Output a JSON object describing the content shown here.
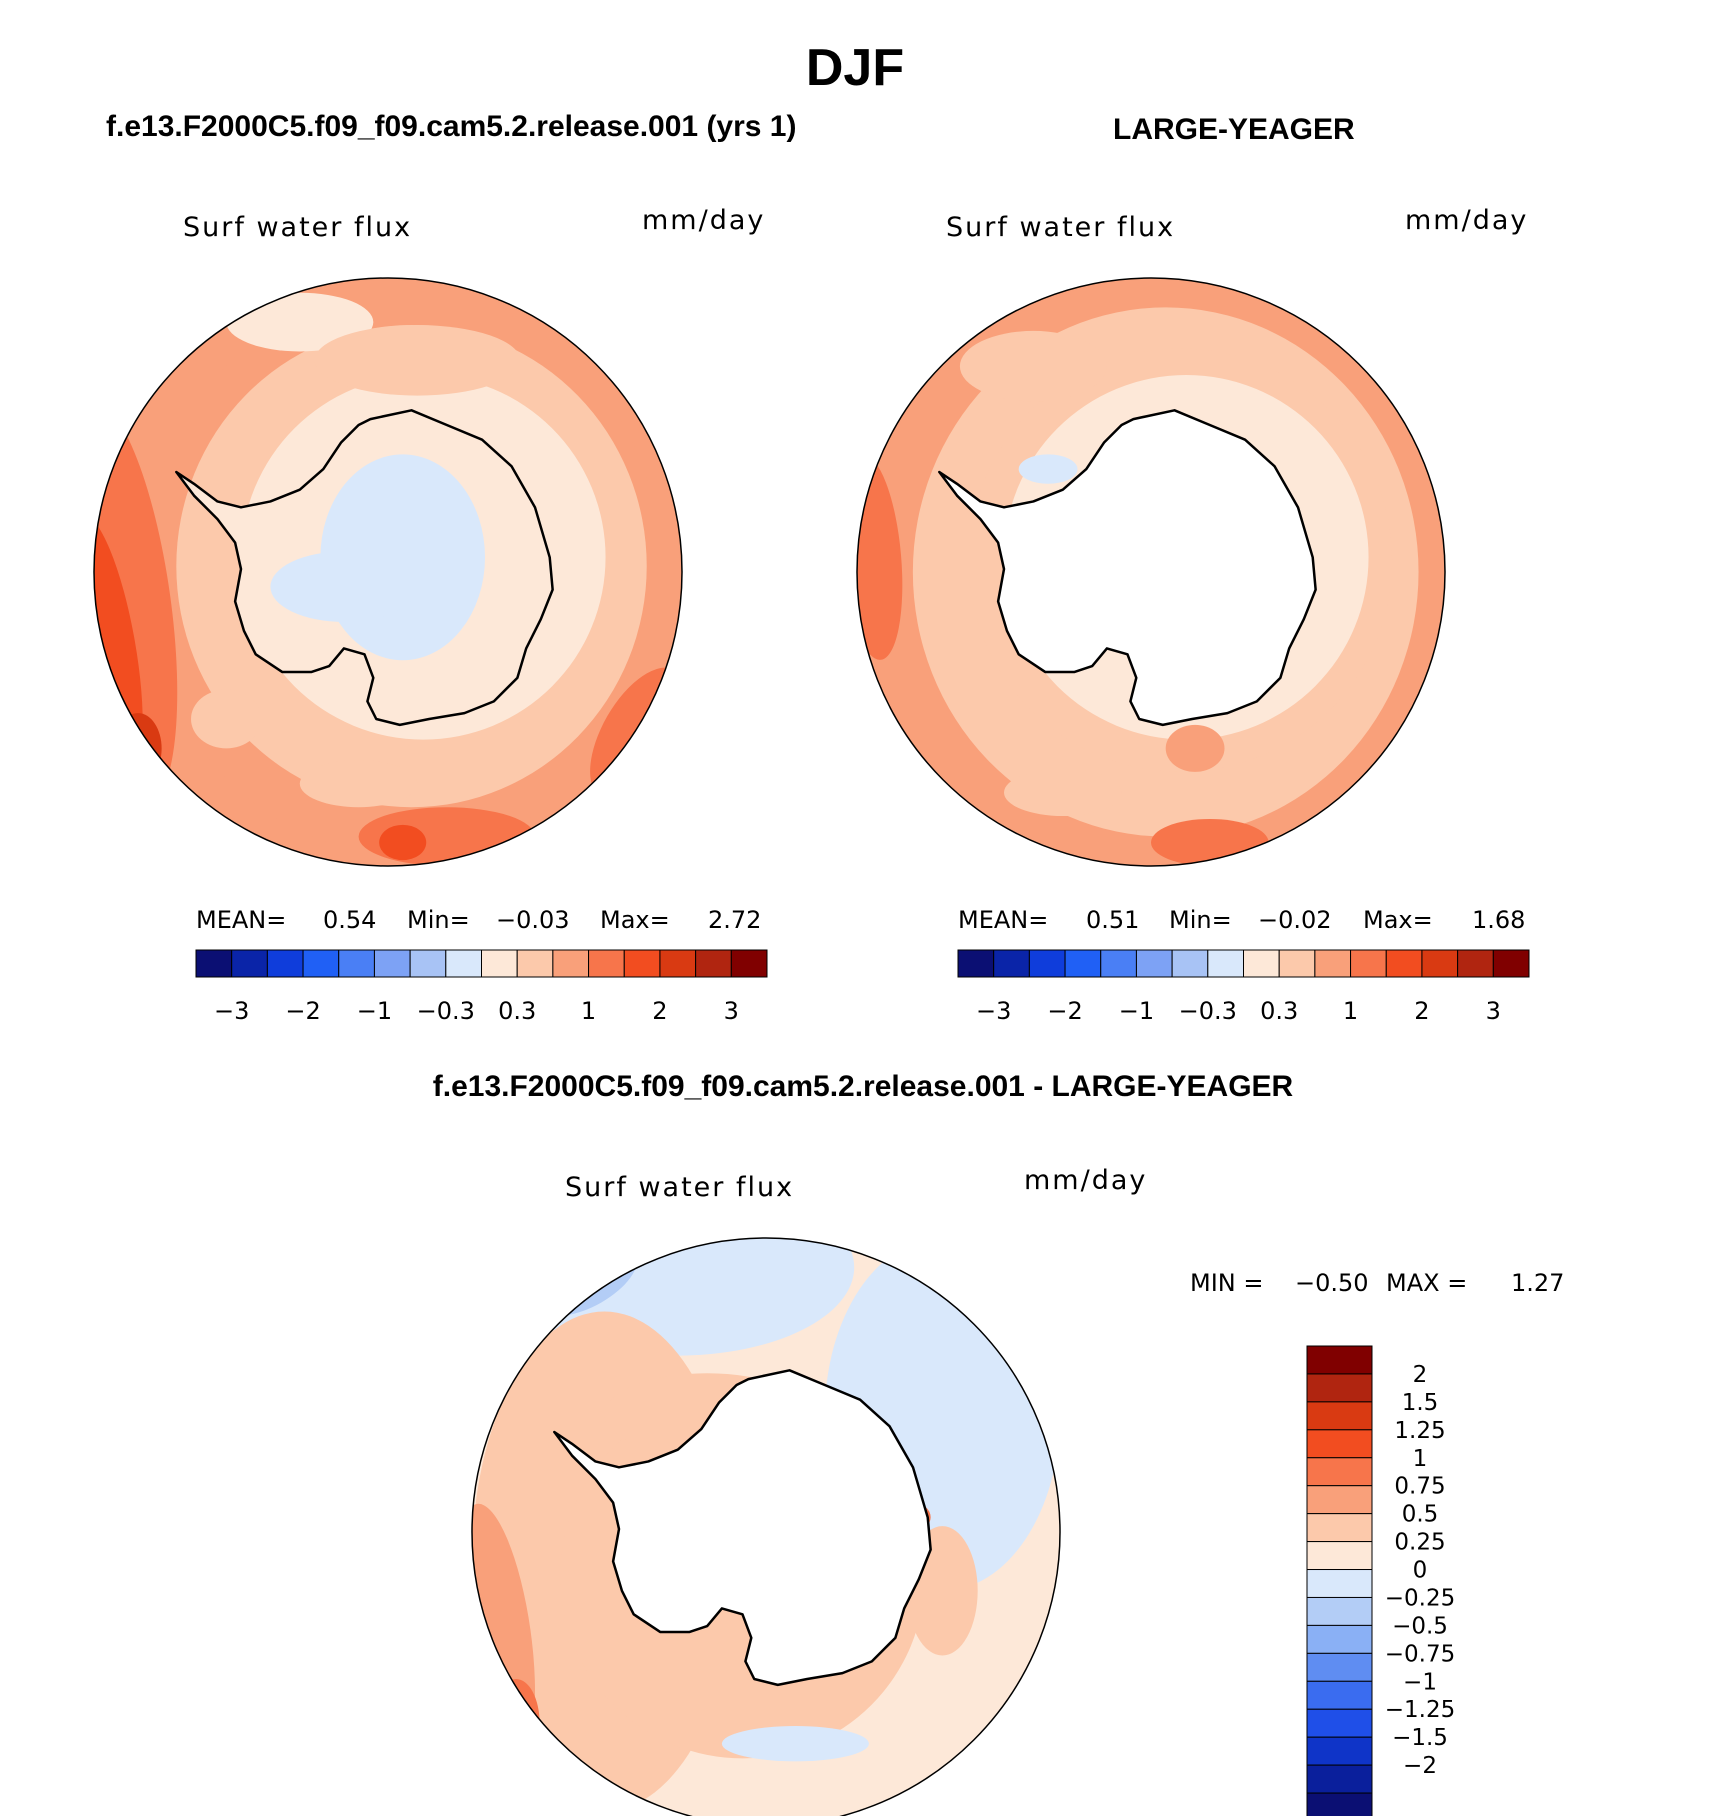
{
  "figure_title": "DJF",
  "panels": [
    {
      "title": "f.e13.F2000C5.f09_f09.cam5.2.release.001 (yrs 1)",
      "variable_label": "Surf water flux",
      "units": "mm/day",
      "mean_label": "MEAN=",
      "mean": "0.54",
      "min_label": "Min=",
      "min": "−0.03",
      "max_label": "Max=",
      "max": "2.72"
    },
    {
      "title": "LARGE-YEAGER",
      "variable_label": "Surf water flux",
      "units": "mm/day",
      "mean_label": "MEAN=",
      "mean": "0.51",
      "min_label": "Min=",
      "min": "−0.02",
      "max_label": "Max=",
      "max": "1.68"
    },
    {
      "title": "f.e13.F2000C5.f09_f09.cam5.2.release.001 - LARGE-YEAGER",
      "variable_label": "Surf water flux",
      "units": "mm/day",
      "min_label": "MIN =",
      "min": "−0.50",
      "max_label": "MAX =",
      "max": "1.27"
    }
  ],
  "chart_data": [
    {
      "type": "heatmap",
      "projection": "south polar stereographic",
      "title": "f.e13.F2000C5.f09_f09.cam5.2.release.001 (yrs 1)",
      "variable": "Surf water flux",
      "units": "mm/day",
      "mean": 0.54,
      "min": -0.03,
      "max": 2.72,
      "colorbar": {
        "colors": [
          "#0b0f73",
          "#0a24a8",
          "#0f3ddb",
          "#2060f5",
          "#4a7ff5",
          "#7da2f5",
          "#a8c3f5",
          "#d9e8fb",
          "#fde8d8",
          "#fcc9ab",
          "#f9a07a",
          "#f7754b",
          "#f24d20",
          "#d93a12",
          "#b02510",
          "#800000"
        ],
        "tick_labels": [
          "−3",
          "−2",
          "−1",
          "−0.3",
          "0.3",
          "1",
          "2",
          "3"
        ]
      }
    },
    {
      "type": "heatmap",
      "projection": "south polar stereographic",
      "title": "LARGE-YEAGER",
      "variable": "Surf water flux",
      "units": "mm/day",
      "mean": 0.51,
      "min": -0.02,
      "max": 1.68,
      "colorbar": {
        "colors": [
          "#0b0f73",
          "#0a24a8",
          "#0f3ddb",
          "#2060f5",
          "#4a7ff5",
          "#7da2f5",
          "#a8c3f5",
          "#d9e8fb",
          "#fde8d8",
          "#fcc9ab",
          "#f9a07a",
          "#f7754b",
          "#f24d20",
          "#d93a12",
          "#b02510",
          "#800000"
        ],
        "tick_labels": [
          "−3",
          "−2",
          "−1",
          "−0.3",
          "0.3",
          "1",
          "2",
          "3"
        ]
      }
    },
    {
      "type": "heatmap",
      "projection": "south polar stereographic",
      "title": "f.e13.F2000C5.f09_f09.cam5.2.release.001 - LARGE-YEAGER",
      "variable": "Surf water flux",
      "units": "mm/day",
      "min": -0.5,
      "max": 1.27,
      "colorbar": {
        "orientation": "vertical",
        "colors": [
          "#800000",
          "#b02510",
          "#d93a12",
          "#f24d20",
          "#f7754b",
          "#f9a07a",
          "#fcc9ab",
          "#fde8d8",
          "#d9e8fb",
          "#b3cdf6",
          "#8ab0f5",
          "#5f8df2",
          "#3a6cf0",
          "#1f4fe8",
          "#0f34c8",
          "#0a1f9c",
          "#0b0f73"
        ],
        "tick_labels": [
          "2",
          "1.5",
          "1.25",
          "1",
          "0.75",
          "0.5",
          "0.25",
          "0",
          "−0.25",
          "−0.5",
          "−0.75",
          "−1",
          "−1.25",
          "−1.5",
          "−2"
        ]
      }
    }
  ]
}
